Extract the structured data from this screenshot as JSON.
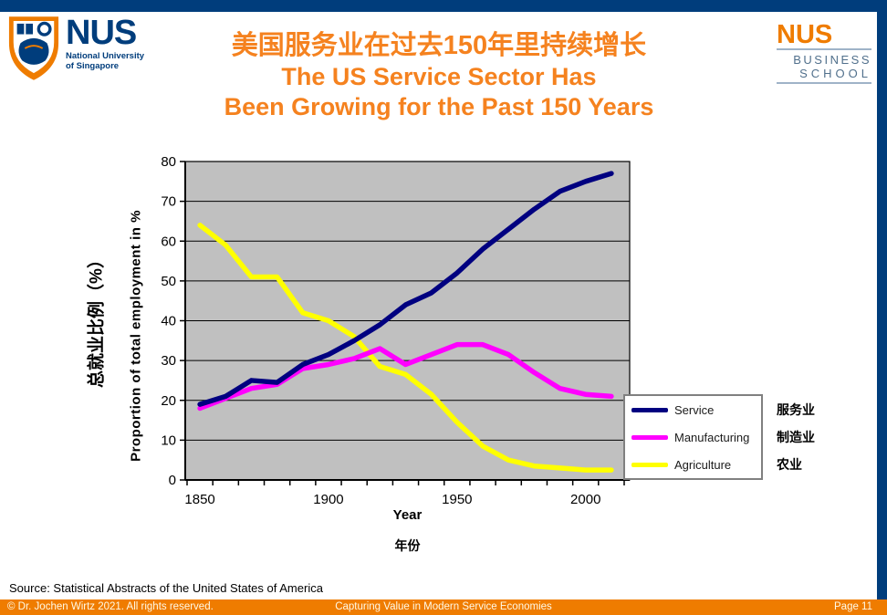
{
  "header": {
    "nus_logo": {
      "acronym": "NUS",
      "line1": "National University",
      "line2": "of Singapore"
    },
    "biz_logo": {
      "acronym": "NUS",
      "line1": "BUSINESS",
      "line2": "SCHOOL"
    },
    "title_cn": "美国服务业在过去150年里持续增长",
    "title_en_line1": "The US Service Sector Has",
    "title_en_line2": "Been Growing for the Past 150 Years"
  },
  "chart_data": {
    "type": "line",
    "x": [
      1850,
      1860,
      1870,
      1880,
      1890,
      1900,
      1910,
      1920,
      1930,
      1940,
      1950,
      1960,
      1970,
      1980,
      1990,
      2000,
      2010
    ],
    "xticks_labeled": [
      1850,
      1900,
      1950,
      2000
    ],
    "xlabel_en": "Year",
    "xlabel_cn": "年份",
    "ylabel_en": "Proportion of total employment in %",
    "ylabel_cn": "总就业比例（%）",
    "ylim": [
      0,
      80
    ],
    "ytick_step": 10,
    "grid": true,
    "plot_bg": "#C0C0C0",
    "legend_position": "bottom-right",
    "series": [
      {
        "name": "Service",
        "name_cn": "服务业",
        "color": "#000080",
        "values": [
          19,
          21,
          25,
          24.5,
          29,
          31.5,
          35,
          39,
          44,
          47,
          52,
          58,
          63,
          68,
          72.5,
          75,
          77
        ]
      },
      {
        "name": "Manufacturing",
        "name_cn": "制造业",
        "color": "#FF00FF",
        "values": [
          18,
          20.5,
          23,
          24,
          28,
          29,
          30.5,
          33,
          29,
          31.5,
          34,
          34,
          31.5,
          27,
          23,
          21.5,
          21
        ]
      },
      {
        "name": "Agriculture",
        "name_cn": "农业",
        "color": "#FFFF00",
        "values": [
          64,
          59,
          51,
          51,
          42,
          40,
          36,
          28.5,
          26.5,
          21.5,
          14.5,
          8.5,
          5,
          3.5,
          3,
          2.5,
          2.5
        ]
      }
    ]
  },
  "source": "Source: Statistical Abstracts of the United States of America",
  "footer": {
    "copyright": "© Dr. Jochen Wirtz 2021. All rights reserved.",
    "center": "Capturing Value in Modern Service Economies",
    "page": "Page 11"
  },
  "colors": {
    "nus_blue": "#003D7C",
    "nus_orange": "#EF7C00",
    "title_orange": "#F5821F",
    "plot_background": "#C0C0C0",
    "service": "#000080",
    "manufacturing": "#FF00FF",
    "agriculture": "#FFFF00"
  }
}
